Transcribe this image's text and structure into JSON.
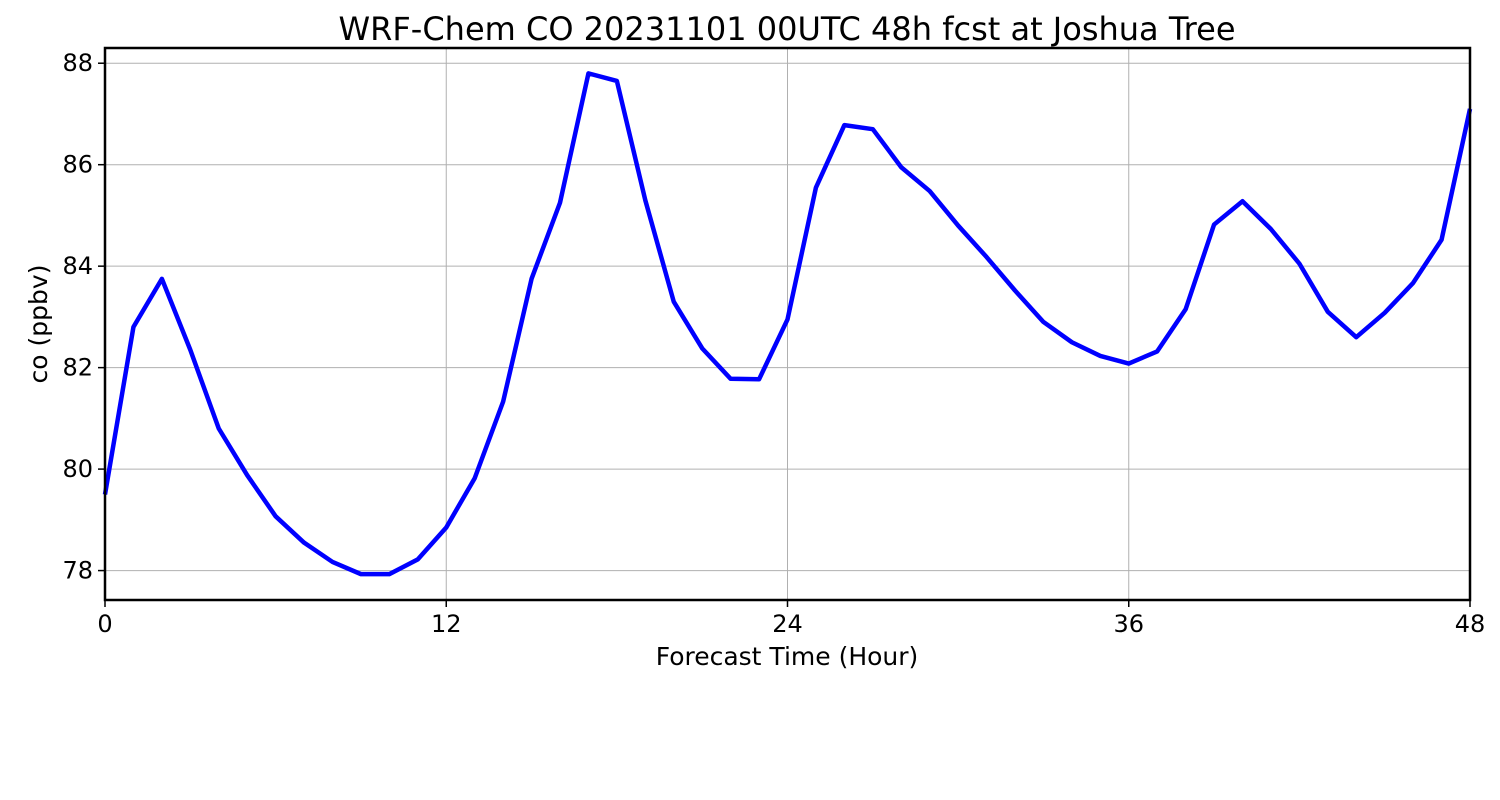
{
  "chart_data": {
    "type": "line",
    "title": "WRF-Chem CO  20231101 00UTC 48h fcst at Joshua Tree",
    "xlabel": "Forecast Time (Hour)",
    "ylabel": "co  (ppbv)",
    "xlim": [
      0,
      48
    ],
    "ylim": [
      77.42,
      88.3
    ],
    "xticks": [
      0,
      12,
      24,
      36,
      48
    ],
    "yticks": [
      78,
      80,
      82,
      84,
      86,
      88
    ],
    "grid": true,
    "series": [
      {
        "color": "#0000ff",
        "x": [
          0,
          1,
          2,
          3,
          4,
          5,
          6,
          7,
          8,
          9,
          10,
          11,
          12,
          13,
          14,
          15,
          16,
          17,
          18,
          19,
          20,
          21,
          22,
          23,
          24,
          25,
          26,
          27,
          28,
          29,
          30,
          31,
          32,
          33,
          34,
          35,
          36,
          37,
          38,
          39,
          40,
          41,
          42,
          43,
          44,
          45,
          46,
          47,
          48
        ],
        "values": [
          79.5,
          82.8,
          83.75,
          82.35,
          80.8,
          79.88,
          79.07,
          78.55,
          78.17,
          77.93,
          77.93,
          78.22,
          78.85,
          79.82,
          81.33,
          83.75,
          85.25,
          87.8,
          87.65,
          85.3,
          83.3,
          82.38,
          81.78,
          81.77,
          82.95,
          85.55,
          86.78,
          86.7,
          85.95,
          85.48,
          84.8,
          84.18,
          83.52,
          82.9,
          82.5,
          82.23,
          82.08,
          82.32,
          83.15,
          84.82,
          85.28,
          84.73,
          84.05,
          83.1,
          82.6,
          83.08,
          83.67,
          84.52,
          87.1
        ]
      }
    ]
  }
}
